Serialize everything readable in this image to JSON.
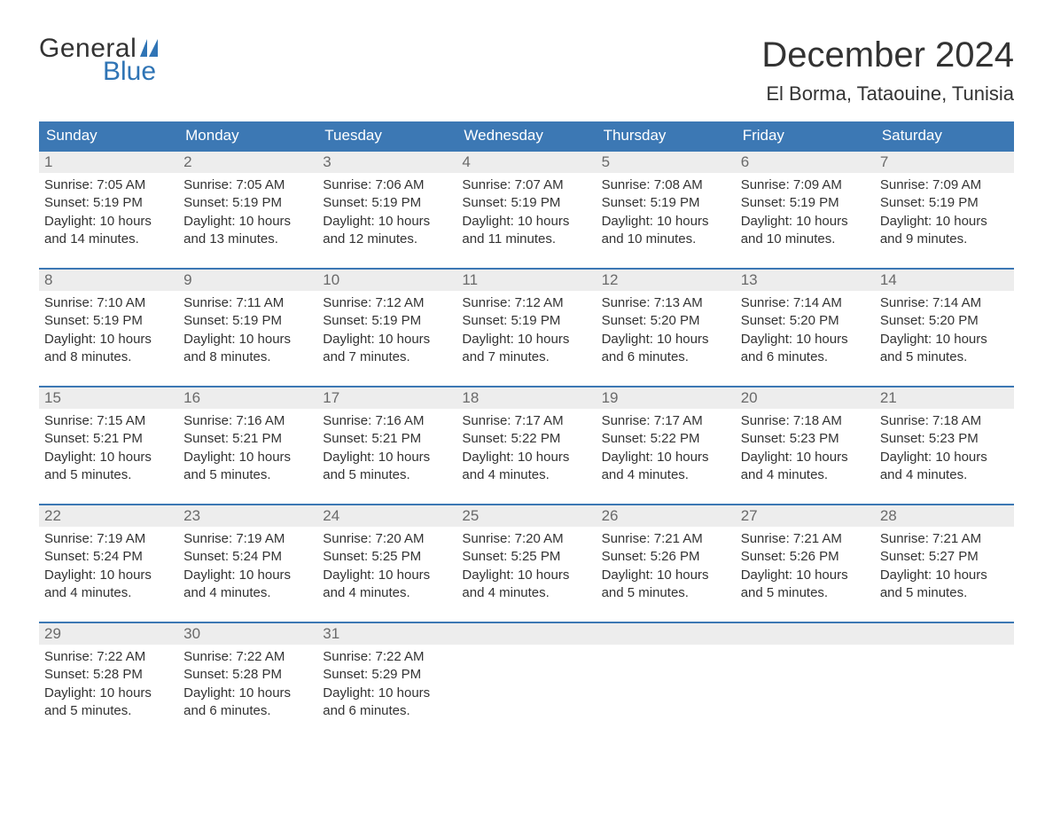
{
  "brand": {
    "general": "General",
    "blue": "Blue"
  },
  "title": "December 2024",
  "location": "El Borma, Tataouine, Tunisia",
  "colors": {
    "header_bg": "#3c78b4",
    "header_text": "#ffffff",
    "daynum_bg": "#ededed",
    "daynum_text": "#6a6a6a",
    "row_border": "#3c78b4",
    "body_text": "#333333",
    "brand_blue": "#2f74b5"
  },
  "typography": {
    "title_fontsize": 40,
    "location_fontsize": 22,
    "header_fontsize": 17,
    "daynum_fontsize": 17,
    "body_fontsize": 15
  },
  "columns": [
    "Sunday",
    "Monday",
    "Tuesday",
    "Wednesday",
    "Thursday",
    "Friday",
    "Saturday"
  ],
  "weeks": [
    [
      {
        "num": "1",
        "sunrise": "Sunrise: 7:05 AM",
        "sunset": "Sunset: 5:19 PM",
        "daylight1": "Daylight: 10 hours",
        "daylight2": "and 14 minutes."
      },
      {
        "num": "2",
        "sunrise": "Sunrise: 7:05 AM",
        "sunset": "Sunset: 5:19 PM",
        "daylight1": "Daylight: 10 hours",
        "daylight2": "and 13 minutes."
      },
      {
        "num": "3",
        "sunrise": "Sunrise: 7:06 AM",
        "sunset": "Sunset: 5:19 PM",
        "daylight1": "Daylight: 10 hours",
        "daylight2": "and 12 minutes."
      },
      {
        "num": "4",
        "sunrise": "Sunrise: 7:07 AM",
        "sunset": "Sunset: 5:19 PM",
        "daylight1": "Daylight: 10 hours",
        "daylight2": "and 11 minutes."
      },
      {
        "num": "5",
        "sunrise": "Sunrise: 7:08 AM",
        "sunset": "Sunset: 5:19 PM",
        "daylight1": "Daylight: 10 hours",
        "daylight2": "and 10 minutes."
      },
      {
        "num": "6",
        "sunrise": "Sunrise: 7:09 AM",
        "sunset": "Sunset: 5:19 PM",
        "daylight1": "Daylight: 10 hours",
        "daylight2": "and 10 minutes."
      },
      {
        "num": "7",
        "sunrise": "Sunrise: 7:09 AM",
        "sunset": "Sunset: 5:19 PM",
        "daylight1": "Daylight: 10 hours",
        "daylight2": "and 9 minutes."
      }
    ],
    [
      {
        "num": "8",
        "sunrise": "Sunrise: 7:10 AM",
        "sunset": "Sunset: 5:19 PM",
        "daylight1": "Daylight: 10 hours",
        "daylight2": "and 8 minutes."
      },
      {
        "num": "9",
        "sunrise": "Sunrise: 7:11 AM",
        "sunset": "Sunset: 5:19 PM",
        "daylight1": "Daylight: 10 hours",
        "daylight2": "and 8 minutes."
      },
      {
        "num": "10",
        "sunrise": "Sunrise: 7:12 AM",
        "sunset": "Sunset: 5:19 PM",
        "daylight1": "Daylight: 10 hours",
        "daylight2": "and 7 minutes."
      },
      {
        "num": "11",
        "sunrise": "Sunrise: 7:12 AM",
        "sunset": "Sunset: 5:19 PM",
        "daylight1": "Daylight: 10 hours",
        "daylight2": "and 7 minutes."
      },
      {
        "num": "12",
        "sunrise": "Sunrise: 7:13 AM",
        "sunset": "Sunset: 5:20 PM",
        "daylight1": "Daylight: 10 hours",
        "daylight2": "and 6 minutes."
      },
      {
        "num": "13",
        "sunrise": "Sunrise: 7:14 AM",
        "sunset": "Sunset: 5:20 PM",
        "daylight1": "Daylight: 10 hours",
        "daylight2": "and 6 minutes."
      },
      {
        "num": "14",
        "sunrise": "Sunrise: 7:14 AM",
        "sunset": "Sunset: 5:20 PM",
        "daylight1": "Daylight: 10 hours",
        "daylight2": "and 5 minutes."
      }
    ],
    [
      {
        "num": "15",
        "sunrise": "Sunrise: 7:15 AM",
        "sunset": "Sunset: 5:21 PM",
        "daylight1": "Daylight: 10 hours",
        "daylight2": "and 5 minutes."
      },
      {
        "num": "16",
        "sunrise": "Sunrise: 7:16 AM",
        "sunset": "Sunset: 5:21 PM",
        "daylight1": "Daylight: 10 hours",
        "daylight2": "and 5 minutes."
      },
      {
        "num": "17",
        "sunrise": "Sunrise: 7:16 AM",
        "sunset": "Sunset: 5:21 PM",
        "daylight1": "Daylight: 10 hours",
        "daylight2": "and 5 minutes."
      },
      {
        "num": "18",
        "sunrise": "Sunrise: 7:17 AM",
        "sunset": "Sunset: 5:22 PM",
        "daylight1": "Daylight: 10 hours",
        "daylight2": "and 4 minutes."
      },
      {
        "num": "19",
        "sunrise": "Sunrise: 7:17 AM",
        "sunset": "Sunset: 5:22 PM",
        "daylight1": "Daylight: 10 hours",
        "daylight2": "and 4 minutes."
      },
      {
        "num": "20",
        "sunrise": "Sunrise: 7:18 AM",
        "sunset": "Sunset: 5:23 PM",
        "daylight1": "Daylight: 10 hours",
        "daylight2": "and 4 minutes."
      },
      {
        "num": "21",
        "sunrise": "Sunrise: 7:18 AM",
        "sunset": "Sunset: 5:23 PM",
        "daylight1": "Daylight: 10 hours",
        "daylight2": "and 4 minutes."
      }
    ],
    [
      {
        "num": "22",
        "sunrise": "Sunrise: 7:19 AM",
        "sunset": "Sunset: 5:24 PM",
        "daylight1": "Daylight: 10 hours",
        "daylight2": "and 4 minutes."
      },
      {
        "num": "23",
        "sunrise": "Sunrise: 7:19 AM",
        "sunset": "Sunset: 5:24 PM",
        "daylight1": "Daylight: 10 hours",
        "daylight2": "and 4 minutes."
      },
      {
        "num": "24",
        "sunrise": "Sunrise: 7:20 AM",
        "sunset": "Sunset: 5:25 PM",
        "daylight1": "Daylight: 10 hours",
        "daylight2": "and 4 minutes."
      },
      {
        "num": "25",
        "sunrise": "Sunrise: 7:20 AM",
        "sunset": "Sunset: 5:25 PM",
        "daylight1": "Daylight: 10 hours",
        "daylight2": "and 4 minutes."
      },
      {
        "num": "26",
        "sunrise": "Sunrise: 7:21 AM",
        "sunset": "Sunset: 5:26 PM",
        "daylight1": "Daylight: 10 hours",
        "daylight2": "and 5 minutes."
      },
      {
        "num": "27",
        "sunrise": "Sunrise: 7:21 AM",
        "sunset": "Sunset: 5:26 PM",
        "daylight1": "Daylight: 10 hours",
        "daylight2": "and 5 minutes."
      },
      {
        "num": "28",
        "sunrise": "Sunrise: 7:21 AM",
        "sunset": "Sunset: 5:27 PM",
        "daylight1": "Daylight: 10 hours",
        "daylight2": "and 5 minutes."
      }
    ],
    [
      {
        "num": "29",
        "sunrise": "Sunrise: 7:22 AM",
        "sunset": "Sunset: 5:28 PM",
        "daylight1": "Daylight: 10 hours",
        "daylight2": "and 5 minutes."
      },
      {
        "num": "30",
        "sunrise": "Sunrise: 7:22 AM",
        "sunset": "Sunset: 5:28 PM",
        "daylight1": "Daylight: 10 hours",
        "daylight2": "and 6 minutes."
      },
      {
        "num": "31",
        "sunrise": "Sunrise: 7:22 AM",
        "sunset": "Sunset: 5:29 PM",
        "daylight1": "Daylight: 10 hours",
        "daylight2": "and 6 minutes."
      },
      null,
      null,
      null,
      null
    ]
  ]
}
